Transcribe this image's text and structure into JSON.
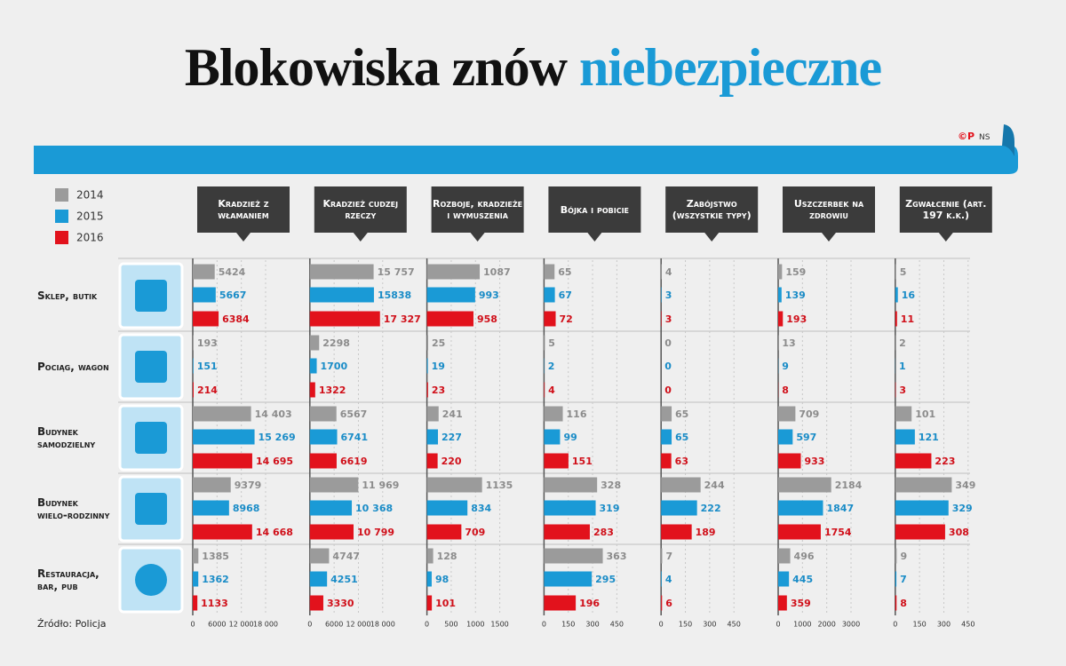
{
  "title": "Blokowiska znów",
  "title_highlight": "niebezpieczne",
  "logo": "©P",
  "credit": "NS",
  "source": "Źródło: Policja",
  "legend": [
    {
      "name": "2014",
      "color": "#9b9b9b"
    },
    {
      "name": "2015",
      "color": "#1a9ad6"
    },
    {
      "name": "2016",
      "color": "#e2121c"
    }
  ],
  "rows": [
    "Sklep, butik",
    "Pociąg, wagon",
    "Budynek samodzielny",
    "Budynek wielo-rodzinny",
    "Restauracja, bar, pub"
  ],
  "chart_data": [
    {
      "type": "bar",
      "orientation": "horizontal",
      "title": "Kradzież z włamaniem",
      "xlim": [
        0,
        27000
      ],
      "xticks": [
        0,
        6000,
        {
          "value": 12000,
          "label": "12 000"
        },
        {
          "value": 18000,
          "label": "18 000"
        }
      ],
      "series": [
        {
          "values": [
            5424,
            193,
            14403,
            9379,
            1385
          ],
          "value_labels": [
            "5424",
            "193",
            "14 403",
            "9379",
            "1385"
          ]
        },
        {
          "values": [
            5667,
            151,
            15269,
            8968,
            1362
          ],
          "value_labels": [
            "5667",
            "151",
            "15 269",
            "8968",
            "1362"
          ]
        },
        {
          "values": [
            6384,
            214,
            14695,
            14668,
            1133
          ],
          "value_labels": [
            "6384",
            "214",
            "14 695",
            "14 668",
            "1133"
          ]
        }
      ]
    },
    {
      "type": "bar",
      "orientation": "horizontal",
      "title": "Kradzież cudzej rzeczy",
      "xlim": [
        0,
        27000
      ],
      "xticks": [
        0,
        6000,
        {
          "value": 12000,
          "label": "12 000"
        },
        {
          "value": 18000,
          "label": "18 000"
        }
      ],
      "series": [
        {
          "values": [
            15757,
            2298,
            6567,
            11969,
            4747
          ],
          "value_labels": [
            "15 757",
            "2298",
            "6567",
            "11 969",
            "4747"
          ]
        },
        {
          "values": [
            15838,
            1700,
            6741,
            10368,
            4251
          ],
          "value_labels": [
            "15838",
            "1700",
            "6741",
            "10 368",
            "4251"
          ]
        },
        {
          "values": [
            17327,
            1322,
            6619,
            10799,
            3330
          ],
          "value_labels": [
            "17 327",
            "1322",
            "6619",
            "10 799",
            "3330"
          ]
        }
      ]
    },
    {
      "type": "bar",
      "orientation": "horizontal",
      "title": "Rozboje, kradzieże i wymuszenia",
      "xlim": [
        0,
        2250
      ],
      "xticks": [
        0,
        500,
        1000,
        1500
      ],
      "series": [
        {
          "values": [
            1087,
            25,
            241,
            1135,
            128
          ]
        },
        {
          "values": [
            993,
            19,
            227,
            834,
            98
          ]
        },
        {
          "values": [
            958,
            23,
            220,
            709,
            101
          ]
        }
      ]
    },
    {
      "type": "bar",
      "orientation": "horizontal",
      "title": "Bójka i pobicie",
      "xlim": [
        0,
        675
      ],
      "xticks": [
        0,
        150,
        300,
        450
      ],
      "series": [
        {
          "values": [
            65,
            5,
            116,
            328,
            363
          ]
        },
        {
          "values": [
            67,
            2,
            99,
            319,
            295
          ]
        },
        {
          "values": [
            72,
            4,
            151,
            283,
            196
          ]
        }
      ]
    },
    {
      "type": "bar",
      "orientation": "horizontal",
      "title": "Zabójstwo (wszystkie typy)",
      "xlim": [
        0,
        675
      ],
      "xticks": [
        0,
        150,
        300,
        450
      ],
      "series": [
        {
          "values": [
            4,
            0,
            65,
            244,
            7
          ]
        },
        {
          "values": [
            3,
            0,
            65,
            222,
            4
          ]
        },
        {
          "values": [
            3,
            0,
            63,
            189,
            6
          ]
        }
      ]
    },
    {
      "type": "bar",
      "orientation": "horizontal",
      "title": "Uszczerbek na zdrowiu",
      "xlim": [
        0,
        4500
      ],
      "xticks": [
        0,
        1000,
        2000,
        3000
      ],
      "series": [
        {
          "values": [
            159,
            13,
            709,
            2184,
            496
          ]
        },
        {
          "values": [
            139,
            9,
            597,
            1847,
            445
          ]
        },
        {
          "values": [
            193,
            8,
            933,
            1754,
            359
          ]
        }
      ]
    },
    {
      "type": "bar",
      "orientation": "horizontal",
      "title": "Zgwałcenie (art. 197 k.k.)",
      "xlim": [
        0,
        675
      ],
      "xticks": [
        0,
        150,
        300,
        450
      ],
      "series": [
        {
          "values": [
            5,
            2,
            101,
            349,
            9
          ]
        },
        {
          "values": [
            16,
            1,
            121,
            329,
            7
          ]
        },
        {
          "values": [
            11,
            3,
            223,
            308,
            8
          ]
        }
      ]
    }
  ]
}
